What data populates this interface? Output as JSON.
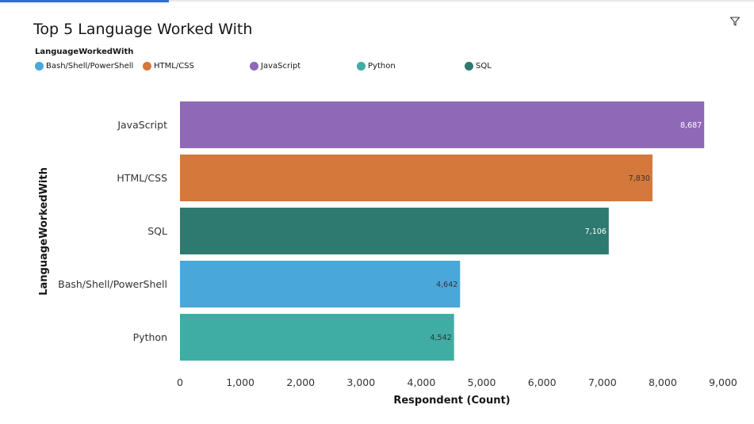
{
  "chart_data": {
    "type": "bar",
    "orientation": "horizontal",
    "title": "Top 5 Language Worked With",
    "legend_title": "LanguageWorkedWith",
    "legend_placement": "top-left",
    "legend": [
      {
        "label": "Bash/Shell/PowerShell",
        "color": "#4aa7d9"
      },
      {
        "label": "HTML/CSS",
        "color": "#d4783c"
      },
      {
        "label": "JavaScript",
        "color": "#9068b8"
      },
      {
        "label": "Python",
        "color": "#3fada3"
      },
      {
        "label": "SQL",
        "color": "#2e7a70"
      }
    ],
    "categories": [
      "JavaScript",
      "HTML/CSS",
      "SQL",
      "Bash/Shell/PowerShell",
      "Python"
    ],
    "values": [
      8687,
      7830,
      7106,
      4642,
      4542
    ],
    "value_labels": [
      "8,687",
      "7,830",
      "7,106",
      "4,642",
      "4,542"
    ],
    "colors": [
      "#9068b8",
      "#d4783c",
      "#2e7a70",
      "#4aa7d9",
      "#3fada3"
    ],
    "label_colors": [
      "#ffffff",
      "#333333",
      "#ffffff",
      "#333333",
      "#333333"
    ],
    "xlabel": "Respondent (Count)",
    "ylabel": "LanguageWorkedWith",
    "xlim": [
      0,
      9000
    ],
    "xticks": [
      0,
      1000,
      2000,
      3000,
      4000,
      5000,
      6000,
      7000,
      8000,
      9000
    ],
    "xtick_labels": [
      "0",
      "1,000",
      "2,000",
      "3,000",
      "4,000",
      "5,000",
      "6,000",
      "7,000",
      "8,000",
      "9,000"
    ],
    "grid": false
  },
  "toolbar": {
    "filter_icon": "filter-icon"
  }
}
